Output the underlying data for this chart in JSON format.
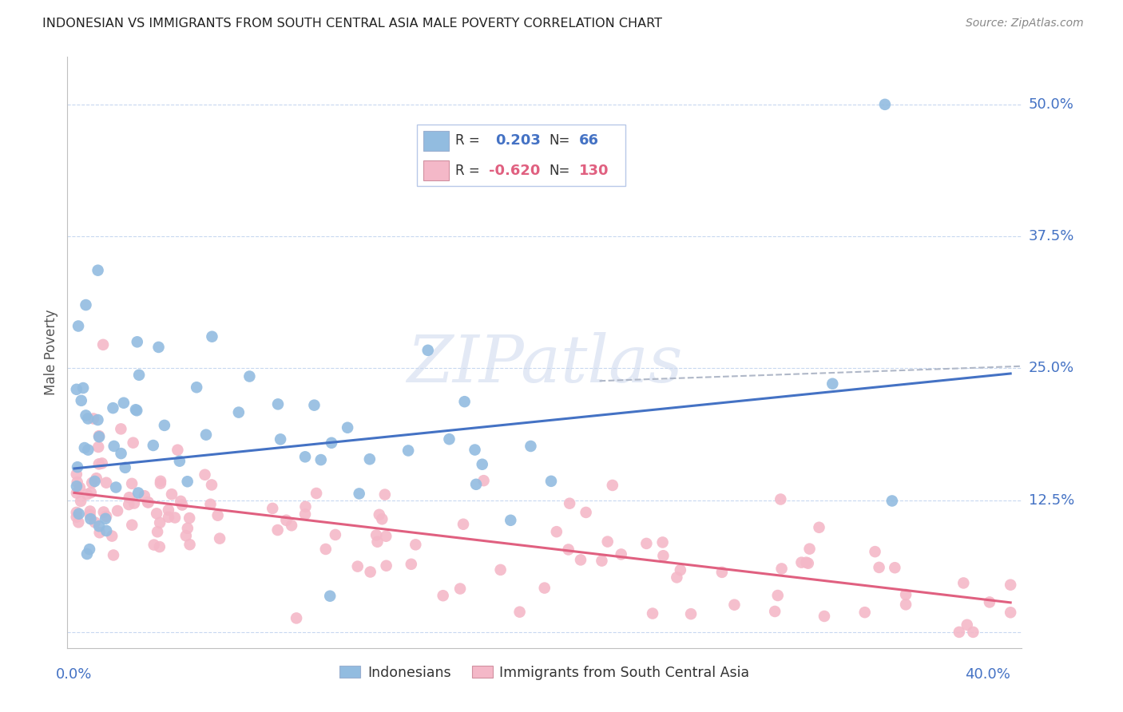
{
  "title": "INDONESIAN VS IMMIGRANTS FROM SOUTH CENTRAL ASIA MALE POVERTY CORRELATION CHART",
  "source": "Source: ZipAtlas.com",
  "ylabel": "Male Poverty",
  "yticks": [
    0.0,
    0.125,
    0.25,
    0.375,
    0.5
  ],
  "ytick_labels": [
    "",
    "12.5%",
    "25.0%",
    "37.5%",
    "50.0%"
  ],
  "xlim": [
    -0.003,
    0.415
  ],
  "ylim": [
    -0.015,
    0.545
  ],
  "blue_R": 0.203,
  "blue_N": 66,
  "pink_R": -0.62,
  "pink_N": 130,
  "blue_color": "#92bce0",
  "pink_color": "#f4b8c8",
  "blue_line_color": "#4472c4",
  "pink_line_color": "#e06080",
  "legend_label_blue": "Indonesians",
  "legend_label_pink": "Immigrants from South Central Asia",
  "watermark": "ZIPatlas",
  "title_color": "#222222",
  "source_color": "#888888",
  "ytick_color": "#4472c4",
  "grid_color": "#c8d8f0",
  "spine_color": "#c0c0c0",
  "blue_trend_start_y": 0.155,
  "blue_trend_end_y": 0.245,
  "pink_trend_start_y": 0.132,
  "pink_trend_end_y": 0.028,
  "dash_line_x1": 0.23,
  "dash_line_x2": 0.415,
  "dash_line_y1": 0.238,
  "dash_line_y2": 0.252
}
